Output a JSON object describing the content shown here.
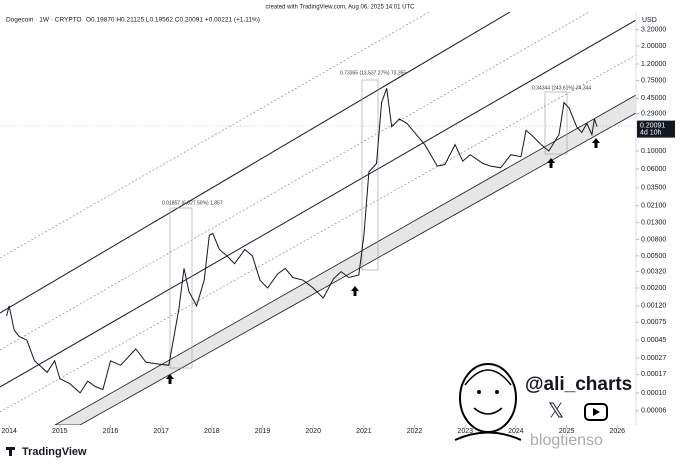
{
  "header": {
    "credit": "created with TradingView.com, Aug 06, 2025 14:01 UTC"
  },
  "chart_data": {
    "type": "line",
    "symbol": "Dogecoin · 1W · CRYPTO",
    "ohlc": "O0.19870 H0.21125 L0.19562 C0.20091 +0.00221 (+1.11%)",
    "currency": "USD",
    "log_scale": true,
    "xlim": [
      2013.82,
      2026.37
    ],
    "ylim": [
      4e-05,
      5.3
    ],
    "xticks": [
      {
        "value": 2014,
        "label": "2014"
      },
      {
        "value": 2015,
        "label": "2015"
      },
      {
        "value": 2016,
        "label": "2016"
      },
      {
        "value": 2017,
        "label": "2017"
      },
      {
        "value": 2018,
        "label": "2018"
      },
      {
        "value": 2019,
        "label": "2019"
      },
      {
        "value": 2020,
        "label": "2020"
      },
      {
        "value": 2021,
        "label": "2021"
      },
      {
        "value": 2022,
        "label": "2022"
      },
      {
        "value": 2023,
        "label": "2023"
      },
      {
        "value": 2024,
        "label": "2024"
      },
      {
        "value": 2025,
        "label": "2025"
      },
      {
        "value": 2026,
        "label": "2026"
      }
    ],
    "yticks": [
      {
        "value": 3.2,
        "label": "3.20000"
      },
      {
        "value": 2,
        "label": "2.00000"
      },
      {
        "value": 1.2,
        "label": "1.20000"
      },
      {
        "value": 0.75,
        "label": "0.75000"
      },
      {
        "value": 0.45,
        "label": "0.45000"
      },
      {
        "value": 0.29,
        "label": "0.29000"
      },
      {
        "value": 0.1,
        "label": "0.10000"
      },
      {
        "value": 0.06,
        "label": "0.06000"
      },
      {
        "value": 0.035,
        "label": "0.03500"
      },
      {
        "value": 0.021,
        "label": "0.02100"
      },
      {
        "value": 0.013,
        "label": "0.01300"
      },
      {
        "value": 0.008,
        "label": "0.00800"
      },
      {
        "value": 0.005,
        "label": "0.00500"
      },
      {
        "value": 0.0032,
        "label": "0.00320"
      },
      {
        "value": 0.002,
        "label": "0.00200"
      },
      {
        "value": 0.0012,
        "label": "0.00120"
      },
      {
        "value": 0.00075,
        "label": "0.00075"
      },
      {
        "value": 0.00045,
        "label": "0.00045"
      },
      {
        "value": 0.00027,
        "label": "0.00027"
      },
      {
        "value": 0.00017,
        "label": "0.00017"
      },
      {
        "value": 0.0001,
        "label": "0.00010"
      },
      {
        "value": 6e-05,
        "label": "0.00006"
      }
    ],
    "last_price": {
      "value": 0.20091,
      "label": "0.20091"
    },
    "countdown": "4d 10h",
    "series": [
      {
        "name": "Dogecoin",
        "color": "#131722",
        "x": [
          2013.95,
          2014.0,
          2014.1,
          2014.2,
          2014.35,
          2014.5,
          2014.6,
          2014.75,
          2014.9,
          2015.0,
          2015.2,
          2015.4,
          2015.55,
          2015.7,
          2015.85,
          2016.0,
          2016.2,
          2016.4,
          2016.5,
          2016.7,
          2016.9,
          2017.15,
          2017.35,
          2017.45,
          2017.55,
          2017.7,
          2017.85,
          2017.95,
          2018.02,
          2018.15,
          2018.3,
          2018.45,
          2018.65,
          2018.8,
          2018.95,
          2019.1,
          2019.3,
          2019.45,
          2019.6,
          2019.8,
          2020.0,
          2020.2,
          2020.4,
          2020.55,
          2020.7,
          2020.9,
          2021.0,
          2021.1,
          2021.25,
          2021.35,
          2021.45,
          2021.55,
          2021.7,
          2021.85,
          2022.0,
          2022.2,
          2022.45,
          2022.6,
          2022.8,
          2022.95,
          2023.1,
          2023.35,
          2023.5,
          2023.7,
          2023.9,
          2024.1,
          2024.2,
          2024.3,
          2024.5,
          2024.65,
          2024.85,
          2024.95,
          2025.05,
          2025.2,
          2025.3,
          2025.4,
          2025.5,
          2025.55,
          2025.6
        ],
        "values": [
          0.0009,
          0.0012,
          0.0006,
          0.0005,
          0.00045,
          0.00025,
          0.00022,
          0.00018,
          0.00025,
          0.00015,
          0.00013,
          0.0001,
          0.00014,
          0.00012,
          0.00011,
          0.00025,
          0.00022,
          0.0003,
          0.00035,
          0.00024,
          0.00023,
          0.00022,
          0.0011,
          0.0035,
          0.0018,
          0.0012,
          0.0025,
          0.009,
          0.0095,
          0.006,
          0.005,
          0.004,
          0.006,
          0.005,
          0.0025,
          0.002,
          0.003,
          0.0035,
          0.0027,
          0.0025,
          0.002,
          0.0015,
          0.0026,
          0.0032,
          0.0027,
          0.0029,
          0.009,
          0.055,
          0.07,
          0.4,
          0.6,
          0.2,
          0.25,
          0.22,
          0.17,
          0.12,
          0.065,
          0.068,
          0.12,
          0.075,
          0.09,
          0.07,
          0.065,
          0.062,
          0.09,
          0.085,
          0.18,
          0.16,
          0.12,
          0.1,
          0.16,
          0.4,
          0.34,
          0.2,
          0.17,
          0.22,
          0.16,
          0.25,
          0.20091
        ]
      }
    ],
    "annotations": [
      "0.01857 (6,027.50%) 1,857",
      "0.73355 (13,537.27%) 73,355",
      "0.34344 (243.61%) 34,344"
    ]
  },
  "branding": {
    "author": "@ali_charts",
    "platform": "TradingView",
    "watermark": "blogtienso"
  }
}
